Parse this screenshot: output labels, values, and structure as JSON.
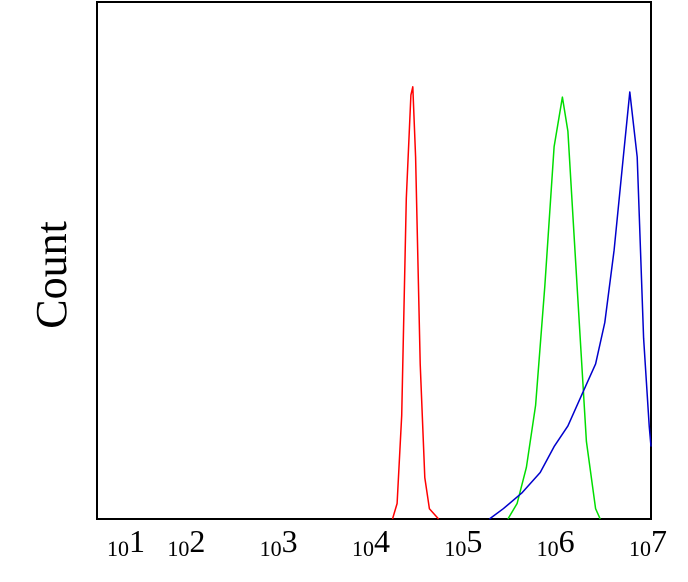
{
  "chart_data": {
    "type": "line",
    "ylabel": "Count",
    "xscale": "log",
    "xlim": [
      10,
      10000000
    ],
    "ylim": [
      0,
      100
    ],
    "xticks": [
      {
        "value": 10,
        "label": "101"
      },
      {
        "value": 100,
        "label": "102"
      },
      {
        "value": 1000,
        "label": "103"
      },
      {
        "value": 10000,
        "label": "104"
      },
      {
        "value": 100000,
        "label": "105"
      },
      {
        "value": 1000000,
        "label": "106"
      },
      {
        "value": 10000000,
        "label": "107"
      }
    ],
    "series": [
      {
        "color": "#ff0000",
        "x": [
          15849,
          17783,
          19953,
          22387,
          25119,
          26303,
          28184,
          31623,
          35481,
          39811,
          50119
        ],
        "values": [
          0,
          3,
          20,
          62,
          82,
          83.6,
          70,
          30,
          8,
          2,
          0
        ]
      },
      {
        "color": "#00dd00",
        "x": [
          281838,
          354813,
          446684,
          562341,
          707946,
          891251,
          1096478,
          1258925,
          1584893,
          1995262,
          2511886,
          2818383
        ],
        "values": [
          0,
          3,
          10,
          22,
          45,
          72,
          81.6,
          75,
          45,
          15,
          2,
          0
        ]
      },
      {
        "color": "#0000cc",
        "x": [
          177828,
          251189,
          398107,
          630957,
          891251,
          1258925,
          1778279,
          2511886,
          3162278,
          3981072,
          5011872,
          5888437,
          7079458,
          8317638,
          9549926,
          10000000
        ],
        "values": [
          0,
          2,
          5,
          9,
          14,
          18,
          24,
          30,
          38,
          52,
          70,
          82.6,
          70,
          35,
          18,
          14
        ]
      }
    ]
  }
}
